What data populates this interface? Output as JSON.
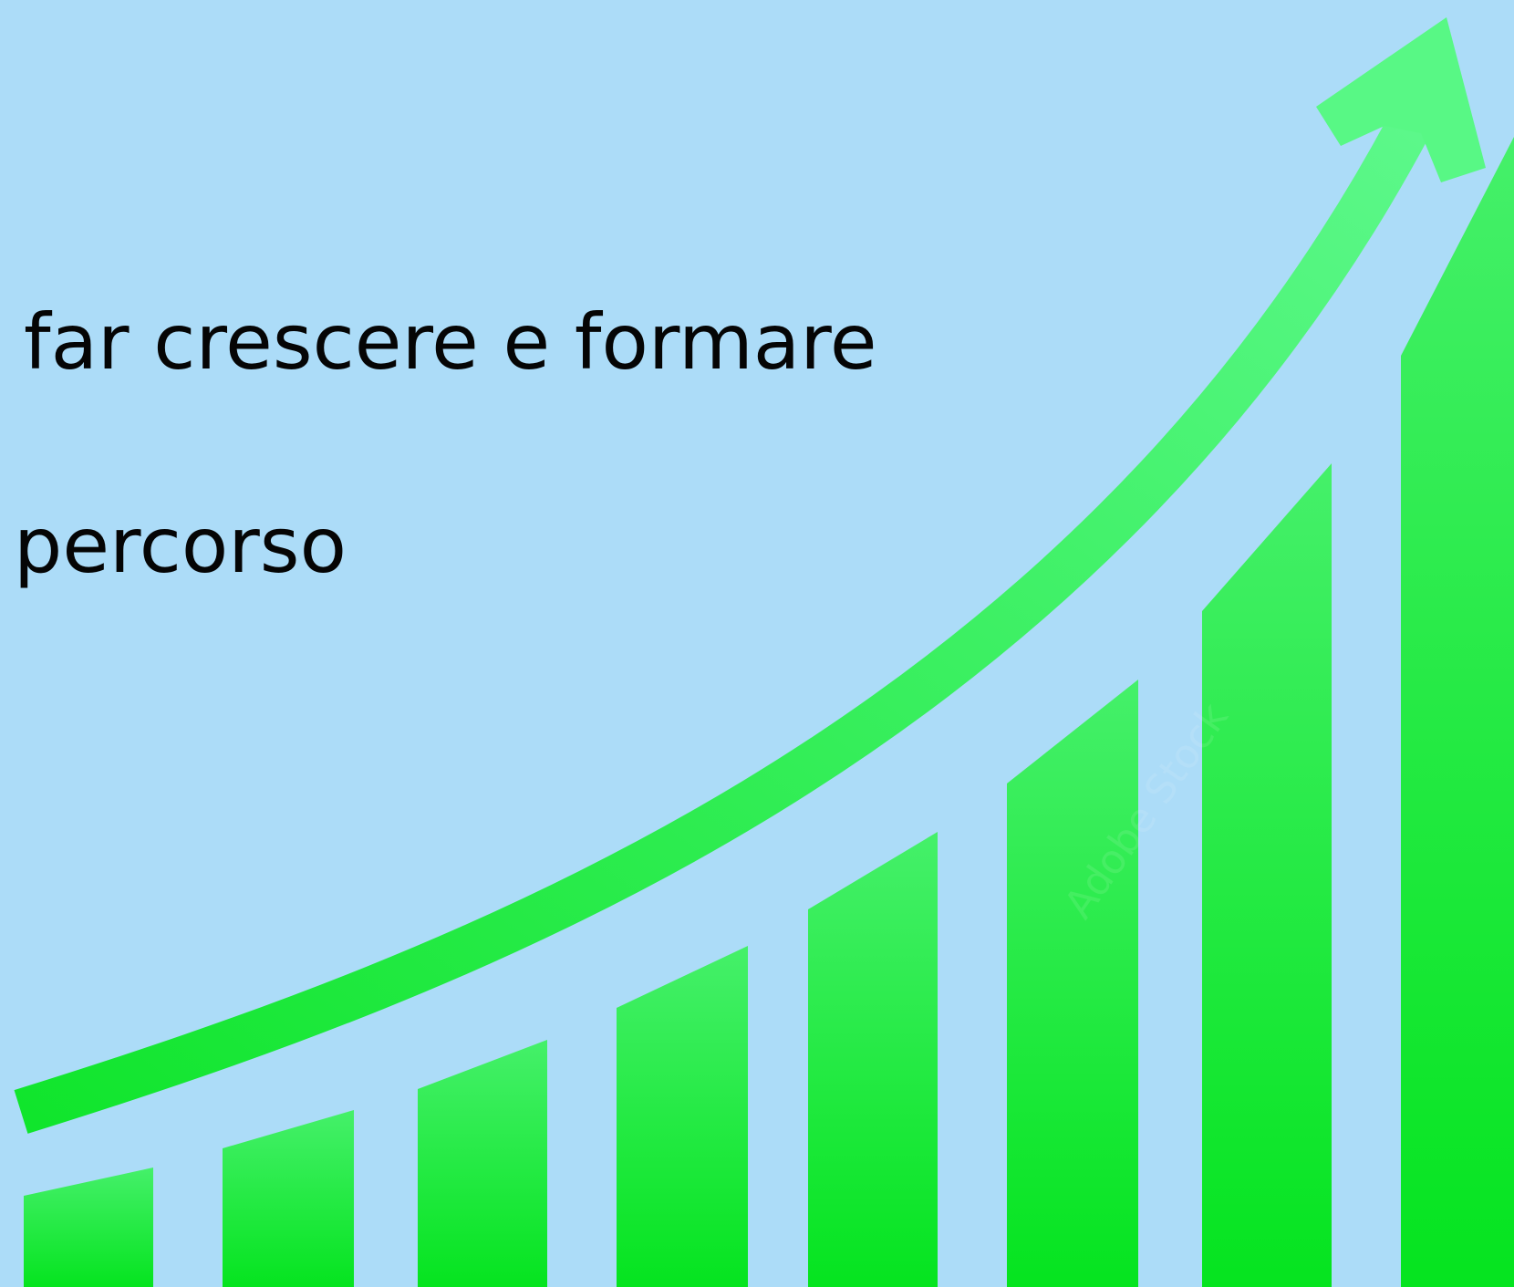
{
  "slide": {
    "lines": [
      "far crescere e formare",
      "percorso"
    ],
    "watermark_text": "Adobe Stock"
  },
  "graphic": {
    "background_color": "#acdcf8",
    "bar_color_top": "#52f57e",
    "bar_color_bottom": "#00e31a",
    "arrow_color": "#4ef87a",
    "bar_count": 8,
    "bar_levels": [
      0.07,
      0.135,
      0.19,
      0.22,
      0.27,
      0.44,
      0.64,
      0.75
    ]
  }
}
